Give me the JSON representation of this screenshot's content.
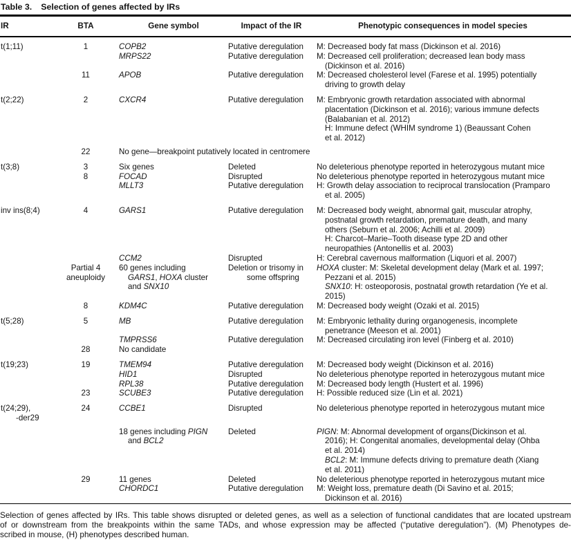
{
  "title": {
    "label": "Table 3.",
    "text": "Selection of genes affected by IRs"
  },
  "columns": [
    "IR",
    "BTA",
    "Gene symbol",
    "Impact of the IR",
    "Phenotypic consequences in model species"
  ],
  "rows": [
    {
      "ir": "t(1;11)",
      "bta": "1",
      "gene": "*COPB2*",
      "impact": "Putative deregulation",
      "phenotype": "M: Decreased body fat mass (Dickinson et al. 2016)"
    },
    {
      "gene": "*MRPS22*",
      "impact": "Putative deregulation",
      "phenotype": "M: Decreased cell proliferation; decreased lean body mass\n(Dickinson et al. 2016)"
    },
    {
      "bta": "11",
      "gene": "*APOB*",
      "impact": "Putative deregulation",
      "phenotype": "M: Decreased cholesterol level (Farese et al. 1995) potentially\ndriving to growth delay"
    },
    {
      "gap": true,
      "ir": "t(2;22)",
      "bta": "2",
      "gene": "*CXCR4*",
      "impact": "Putative deregulation",
      "phenotype": "M: Embryonic growth retardation associated with abnormal\nplacentation (Dickinson et al. 2016); various immune defects\n(Balabanian et al. 2012)\nH: Immune defect (WHIM syndrome 1) (Beaussant Cohen\net al. 2012)"
    },
    {
      "gap_sm": true,
      "bta": "22",
      "gene_span": "No gene—breakpoint putatively located in centromere"
    },
    {
      "gap": true,
      "ir": "t(3;8)",
      "bta": "3",
      "gene": "Six genes",
      "impact": "Deleted",
      "phenotype": "No deleterious phenotype reported in heterozygous mutant mice"
    },
    {
      "bta": "8",
      "gene": "*FOCAD*",
      "impact": "Disrupted",
      "phenotype": "No deleterious phenotype reported in heterozygous mutant mice"
    },
    {
      "gene": "*MLLT3*",
      "impact": "Putative deregulation",
      "phenotype": "H: Growth delay association to reciprocal translocation (Pramparo\net al. 2005)"
    },
    {
      "gap": true,
      "ir": "inv ins(8;4)",
      "bta": "4",
      "gene": "*GARS1*",
      "impact": "Putative deregulation",
      "phenotype": "M: Decreased body weight, abnormal gait, muscular atrophy,\npostnatal growth retardation, premature death, and many\nothers (Seburn et al. 2006; Achilli et al. 2009)\nH: Charcot–Marie–Tooth disease type 2D and other\nneuropathies (Antonellis et al. 2003)"
    },
    {
      "gene": "*CCM2*",
      "impact": "Disrupted",
      "phenotype": "H: Cerebral cavernous malformation (Liquori et al. 2007)"
    },
    {
      "bta": "Partial 4\naneuploidy",
      "gene": "60 genes including\n*GARS1*, *HOXA* cluster\nand *SNX10*",
      "impact": "Deletion or trisomy in\nsome offspring",
      "phenotype": "*HOXA* cluster: M: Skeletal development delay (Mark et al. 1997;\nPezzani et al. 2015)\n*SNX10*: H: osteoporosis, postnatal growth retardation (Ye et al.\n2015)"
    },
    {
      "bta": "8",
      "gene": "*KDM4C*",
      "impact": "Putative deregulation",
      "phenotype": "M: Decreased body weight (Ozaki et al. 2015)"
    },
    {
      "gap": true,
      "ir": "t(5;28)",
      "bta": "5",
      "gene": "*MB*",
      "impact": "Putative deregulation",
      "phenotype": "M: Embryonic lethality during organogenesis, incomplete\npenetrance (Meeson et al. 2001)"
    },
    {
      "gene": "*TMPRSS6*",
      "impact": "Putative deregulation",
      "phenotype": "M: Decreased circulating iron level (Finberg et al. 2010)"
    },
    {
      "bta": "28",
      "gene": "No candidate"
    },
    {
      "gap": true,
      "ir": "t(19;23)",
      "bta": "19",
      "gene": "*TMEM94*",
      "impact": "Putative deregulation",
      "phenotype": "M: Decreased body weight (Dickinson et al. 2016)"
    },
    {
      "gene": "*HID1*",
      "impact": "Disrupted",
      "phenotype": "No deleterious phenotype reported in heterozygous mutant mice"
    },
    {
      "gene": "*RPL38*",
      "impact": "Putative deregulation",
      "phenotype": "M: Decreased body length (Hustert et al. 1996)"
    },
    {
      "bta": "23",
      "gene": "*SCUBE3*",
      "impact": "Putative deregulation",
      "phenotype": "H: Possible reduced size (Lin et al. 2021)"
    },
    {
      "gap": true,
      "ir": "t(24;29),\n-der29",
      "bta": "24",
      "gene": "*CCBE1*",
      "impact": "Disrupted",
      "phenotype": "No deleterious phenotype reported in heterozygous mutant mice"
    },
    {
      "gap_sm": true,
      "gene": "18 genes including *PIGN*\nand *BCL2*",
      "impact": "Deleted",
      "phenotype": "*PIGN*: M: Abnormal development of organs(Dickinson et al.\n2016); H: Congenital anomalies, developmental delay (Ohba\net al. 2014)\n*BCL2*: M: Immune defects driving to premature death (Xiang\net al. 2011)"
    },
    {
      "bta": "29",
      "gene": "11 genes",
      "impact": "Deleted",
      "phenotype": "No deleterious phenotype reported in heterozygous mutant mice"
    },
    {
      "gene": "*CHORDC1*",
      "impact": "Putative deregulation",
      "phenotype": "M: Weight loss, premature death (Di Savino et al. 2015;\nDickinson et al. 2016)"
    }
  ],
  "footnote": {
    "lines": [
      "Selection of genes affected by IRs. This table shows disrupted or deleted genes, as well as a selection of functional candidates that are located upstream",
      "of or downstream from the breakpoints within the same TADs, and whose expression may be affected (“putative deregulation”). (M) Phenotypes de-",
      "scribed in mouse, (H) phenotypes described human."
    ]
  }
}
